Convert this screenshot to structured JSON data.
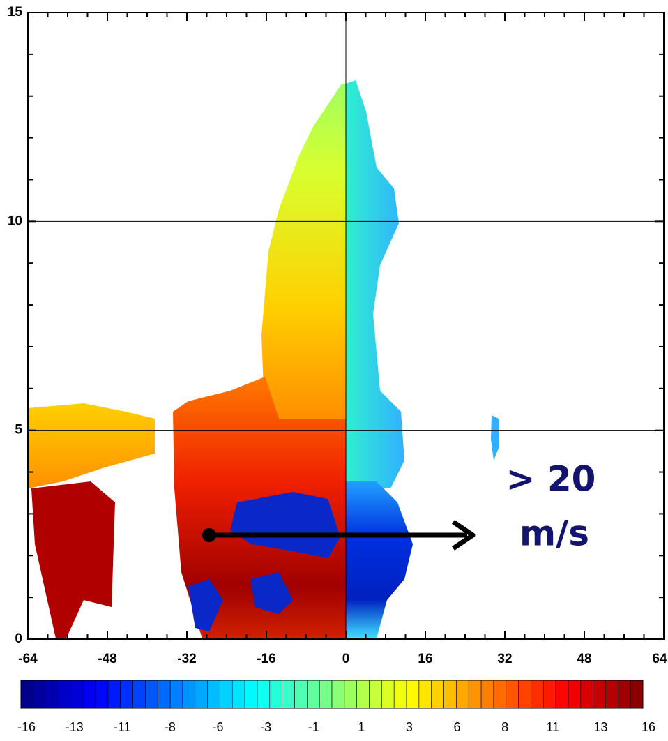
{
  "chart_data": {
    "type": "velocity-section",
    "xlim": [
      -64,
      64
    ],
    "xticks": [
      -64,
      -48,
      -32,
      -16,
      0,
      16,
      32,
      48,
      64
    ],
    "ylim": [
      0,
      15
    ],
    "yticks": [
      0,
      5,
      10,
      15
    ],
    "grid_x": [
      0
    ],
    "grid_y": [
      5,
      10
    ],
    "colormap": "jet",
    "colorbar_lim": [
      -16,
      16
    ],
    "colorbar_ticks": [
      -16,
      -13,
      -11,
      -8,
      -6,
      -3,
      -1,
      1,
      3,
      6,
      8,
      11,
      13,
      16
    ],
    "annotation": [
      "> 20",
      "m/s"
    ]
  }
}
